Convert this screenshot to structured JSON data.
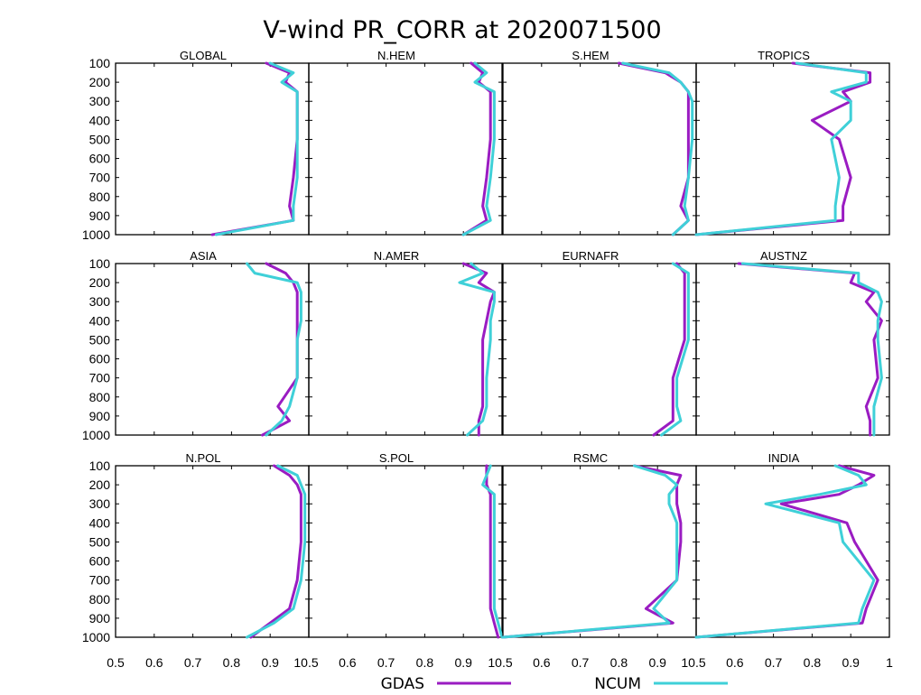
{
  "chart_data": {
    "type": "line",
    "title": "V-wind PR_CORR at 2020071500",
    "xlim": [
      0.5,
      1
    ],
    "ylim": [
      1000,
      100
    ],
    "x_tick_labels": [
      "0.5",
      "0.6",
      "0.7",
      "0.8",
      "0.9",
      "1"
    ],
    "y_tick_labels": [
      "100",
      "200",
      "300",
      "400",
      "500",
      "600",
      "700",
      "800",
      "900",
      "1000"
    ],
    "levels": [
      100,
      150,
      200,
      250,
      300,
      400,
      500,
      700,
      850,
      925,
      1000
    ],
    "colors": {
      "GDAS": "#9a1cc2",
      "NCUM": "#3fd0d8"
    },
    "legend": [
      "GDAS",
      "NCUM"
    ],
    "legend_placement": "bottom-center",
    "panels": [
      {
        "name": "GLOBAL",
        "series": [
          {
            "name": "GDAS",
            "values": [
              0.89,
              0.95,
              0.94,
              0.97,
              0.97,
              0.97,
              0.97,
              0.96,
              0.95,
              0.96,
              0.75
            ]
          },
          {
            "name": "NCUM",
            "values": [
              0.9,
              0.96,
              0.93,
              0.97,
              0.97,
              0.97,
              0.97,
              0.97,
              0.96,
              0.96,
              0.76
            ]
          }
        ]
      },
      {
        "name": "N.HEM",
        "series": [
          {
            "name": "GDAS",
            "values": [
              0.92,
              0.95,
              0.94,
              0.97,
              0.97,
              0.97,
              0.97,
              0.96,
              0.95,
              0.96,
              0.9
            ]
          },
          {
            "name": "NCUM",
            "values": [
              0.93,
              0.96,
              0.93,
              0.98,
              0.98,
              0.98,
              0.98,
              0.97,
              0.96,
              0.97,
              0.9
            ]
          }
        ]
      },
      {
        "name": "S.HEM",
        "series": [
          {
            "name": "GDAS",
            "values": [
              0.8,
              0.92,
              0.96,
              0.98,
              0.98,
              0.98,
              0.98,
              0.98,
              0.96,
              0.98,
              0.94
            ]
          },
          {
            "name": "NCUM",
            "values": [
              0.81,
              0.93,
              0.96,
              0.98,
              0.99,
              0.99,
              0.99,
              0.98,
              0.97,
              0.98,
              0.94
            ]
          }
        ]
      },
      {
        "name": "TROPICS",
        "series": [
          {
            "name": "GDAS",
            "values": [
              0.75,
              0.95,
              0.95,
              0.88,
              0.9,
              0.8,
              0.87,
              0.9,
              0.88,
              0.88,
              0.5
            ]
          },
          {
            "name": "NCUM",
            "values": [
              0.76,
              0.94,
              0.94,
              0.85,
              0.9,
              0.9,
              0.85,
              0.87,
              0.86,
              0.86,
              0.5
            ]
          }
        ]
      },
      {
        "name": "ASIA",
        "series": [
          {
            "name": "GDAS",
            "values": [
              0.89,
              0.94,
              0.96,
              0.97,
              0.97,
              0.97,
              0.97,
              0.97,
              0.92,
              0.95,
              0.88
            ]
          },
          {
            "name": "NCUM",
            "values": [
              0.84,
              0.86,
              0.97,
              0.98,
              0.98,
              0.98,
              0.97,
              0.97,
              0.95,
              0.93,
              0.89
            ]
          }
        ]
      },
      {
        "name": "N.AMER",
        "series": [
          {
            "name": "GDAS",
            "values": [
              0.9,
              0.96,
              0.94,
              0.98,
              0.97,
              0.96,
              0.95,
              0.95,
              0.95,
              0.94,
              0.94
            ]
          },
          {
            "name": "NCUM",
            "values": [
              0.92,
              0.95,
              0.89,
              0.98,
              0.98,
              0.97,
              0.97,
              0.96,
              0.96,
              0.95,
              0.91
            ]
          }
        ]
      },
      {
        "name": "EURNAFR",
        "series": [
          {
            "name": "GDAS",
            "values": [
              0.95,
              0.97,
              0.97,
              0.97,
              0.97,
              0.97,
              0.97,
              0.94,
              0.94,
              0.94,
              0.89
            ]
          },
          {
            "name": "NCUM",
            "values": [
              0.94,
              0.98,
              0.98,
              0.98,
              0.98,
              0.98,
              0.98,
              0.95,
              0.95,
              0.96,
              0.91
            ]
          }
        ]
      },
      {
        "name": "AUSTNZ",
        "series": [
          {
            "name": "GDAS",
            "values": [
              0.61,
              0.91,
              0.9,
              0.96,
              0.94,
              0.98,
              0.96,
              0.97,
              0.94,
              0.95,
              0.95
            ]
          },
          {
            "name": "NCUM",
            "values": [
              0.62,
              0.92,
              0.92,
              0.97,
              0.98,
              0.97,
              0.97,
              0.98,
              0.96,
              0.96,
              0.96
            ]
          }
        ]
      },
      {
        "name": "N.POL",
        "series": [
          {
            "name": "GDAS",
            "values": [
              0.91,
              0.95,
              0.97,
              0.98,
              0.98,
              0.98,
              0.98,
              0.97,
              0.95,
              0.9,
              0.85
            ]
          },
          {
            "name": "NCUM",
            "values": [
              0.92,
              0.97,
              0.98,
              0.99,
              0.99,
              0.99,
              0.99,
              0.98,
              0.96,
              0.91,
              0.84
            ]
          }
        ]
      },
      {
        "name": "S.POL",
        "series": [
          {
            "name": "GDAS",
            "values": [
              0.96,
              0.96,
              0.96,
              0.97,
              0.97,
              0.97,
              0.97,
              0.97,
              0.97,
              0.98,
              0.99
            ]
          },
          {
            "name": "NCUM",
            "values": [
              0.97,
              0.96,
              0.95,
              0.98,
              0.98,
              0.98,
              0.98,
              0.98,
              0.98,
              0.99,
              1.0
            ]
          }
        ]
      },
      {
        "name": "RSMC",
        "series": [
          {
            "name": "GDAS",
            "values": [
              0.84,
              0.96,
              0.95,
              0.95,
              0.95,
              0.96,
              0.96,
              0.95,
              0.87,
              0.94,
              0.5
            ]
          },
          {
            "name": "NCUM",
            "values": [
              0.84,
              0.92,
              0.95,
              0.93,
              0.93,
              0.95,
              0.95,
              0.95,
              0.89,
              0.93,
              0.5
            ]
          }
        ]
      },
      {
        "name": "INDIA",
        "series": [
          {
            "name": "GDAS",
            "values": [
              0.87,
              0.96,
              0.92,
              0.87,
              0.72,
              0.89,
              0.91,
              0.97,
              0.94,
              0.93,
              0.5
            ]
          },
          {
            "name": "NCUM",
            "values": [
              0.86,
              0.92,
              0.94,
              0.82,
              0.68,
              0.87,
              0.88,
              0.96,
              0.93,
              0.92,
              0.5
            ]
          }
        ]
      }
    ]
  }
}
